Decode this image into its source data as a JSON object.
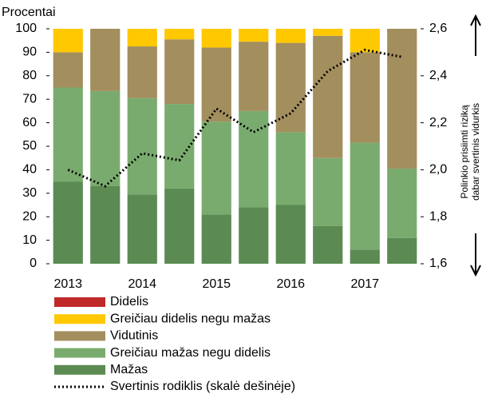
{
  "chart_data": {
    "type": "stacked_bar_line",
    "ylabel": "Procentai",
    "y2label": [
      "Polinkio prisiimti riziką",
      "dabar svertinis vidurkis"
    ],
    "categories": [
      "2013",
      null,
      "2014",
      null,
      "2015",
      null,
      "2016",
      null,
      "2017",
      null
    ],
    "series": [
      {
        "name": "Didelis",
        "color": "#c0282a",
        "values": [
          0,
          0,
          0,
          0,
          0,
          0,
          0,
          0,
          0,
          0
        ]
      },
      {
        "name": "Greičiau didelis negu mažas",
        "color": "#ffc800",
        "values": [
          10,
          0,
          7.5,
          4.5,
          8,
          5.5,
          6,
          3,
          10,
          0
        ]
      },
      {
        "name": "Vidutinis",
        "color": "#a38e5e",
        "values": [
          15,
          26.5,
          22,
          27.5,
          31.5,
          29.5,
          38,
          52,
          38.5,
          59.5
        ]
      },
      {
        "name": "Greičiau mažas negu didelis",
        "color": "#7aab6e",
        "values": [
          40,
          40.5,
          41,
          36,
          39.5,
          41,
          31,
          29,
          45.5,
          29.5
        ]
      },
      {
        "name": "Mažas",
        "color": "#5b8a52",
        "values": [
          35,
          33,
          29.5,
          32,
          21,
          24,
          25,
          16,
          6,
          11
        ]
      },
      {
        "name": "Svertinis rodiklis (skalė dešinėje)",
        "color": "#000000",
        "axis": "y2",
        "line": "dotted",
        "values": [
          2.0,
          1.93,
          2.07,
          2.04,
          2.26,
          2.16,
          2.24,
          2.42,
          2.51,
          2.48
        ]
      }
    ],
    "ylim": [
      0,
      100
    ],
    "yticks": [
      0,
      10,
      20,
      30,
      40,
      50,
      60,
      70,
      80,
      90,
      100
    ],
    "y2lim": [
      1.6,
      2.6
    ],
    "y2ticks": [
      {
        "value": 1.6,
        "label": "1,6"
      },
      {
        "value": 1.8,
        "label": "1,8"
      },
      {
        "value": 2.0,
        "label": "2,0"
      },
      {
        "value": 2.2,
        "label": "2,2"
      },
      {
        "value": 2.4,
        "label": "2,4"
      },
      {
        "value": 2.6,
        "label": "2,6"
      }
    ],
    "grid": false
  }
}
